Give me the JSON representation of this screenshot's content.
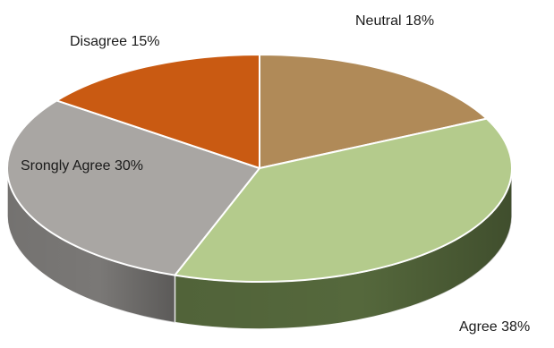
{
  "chart_data": {
    "type": "pie",
    "three_d": true,
    "title": "",
    "legend": "none",
    "slices": [
      {
        "label": "Neutral",
        "value": 18,
        "display": "Neutral 18%",
        "color": "#b08a58",
        "side_color": "#8a6a42"
      },
      {
        "label": "Agree",
        "value": 38,
        "display": "Agree 38%",
        "color": "#b4cb8c",
        "side_color": "#55683c"
      },
      {
        "label": "Srongly Agree",
        "value": 30,
        "display": "Srongly Agree 30%",
        "color": "#a9a6a3",
        "side_color": "#7a7876"
      },
      {
        "label": "Disagree",
        "value": 15,
        "display": "Disagree 15%",
        "color": "#c95a12",
        "side_color": "#8f3f0c"
      }
    ]
  }
}
